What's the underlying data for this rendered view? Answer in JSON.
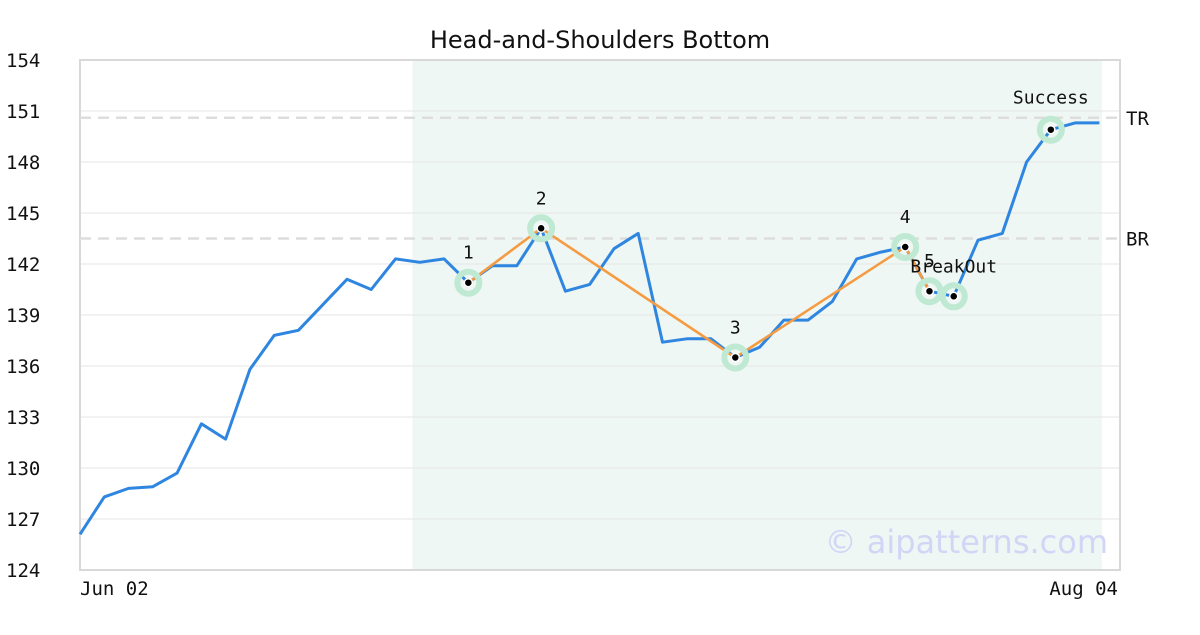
{
  "chart_data": {
    "type": "line",
    "title": "Head-and-Shoulders Bottom",
    "watermark": "© aipatterns.com",
    "x_tick_labels": [
      "Jun 02",
      "Aug 04"
    ],
    "ylim": [
      124,
      154
    ],
    "y_ticks": [
      124,
      127,
      130,
      133,
      136,
      139,
      142,
      145,
      148,
      151,
      154
    ],
    "grid": true,
    "pattern_range_index": [
      14,
      40
    ],
    "series": [
      {
        "values": [
          126.1,
          128.3,
          128.8,
          128.9,
          129.7,
          132.6,
          131.7,
          135.8,
          137.8,
          138.1,
          139.6,
          141.1,
          140.5,
          142.3,
          142.1,
          142.3,
          140.9,
          141.9,
          141.9,
          144.1,
          140.4,
          140.8,
          142.9,
          143.8,
          137.4,
          137.6,
          137.6,
          136.5,
          137.1,
          138.7,
          138.7,
          139.8,
          142.3,
          142.7,
          143.0,
          140.4,
          140.1,
          143.4,
          143.8,
          148.0,
          149.9,
          150.3,
          150.3
        ]
      }
    ],
    "pattern_points": [
      {
        "label": "1",
        "index": 16,
        "value": 140.9
      },
      {
        "label": "2",
        "index": 19,
        "value": 144.1
      },
      {
        "label": "3",
        "index": 27,
        "value": 136.5
      },
      {
        "label": "4",
        "index": 34,
        "value": 143.0
      },
      {
        "label": "5",
        "index": 35,
        "value": 140.4
      }
    ],
    "breakout": {
      "label": "BreakOut",
      "index": 36,
      "value": 140.1
    },
    "success": {
      "label": "Success",
      "index": 40,
      "value": 149.9
    },
    "levels": [
      {
        "label": "TR",
        "value": 150.6
      },
      {
        "label": "BR",
        "value": 143.5
      }
    ],
    "colors": {
      "price_line": "#2f86e0",
      "pattern_line": "#f59b42",
      "pattern_band": "#eef7f3",
      "marker_halo": "#bfe9d2",
      "level_line": "#dddddd",
      "watermark": "#d4d4f7",
      "grid": "#e6e6e6",
      "frame": "#d8d8d8"
    }
  }
}
